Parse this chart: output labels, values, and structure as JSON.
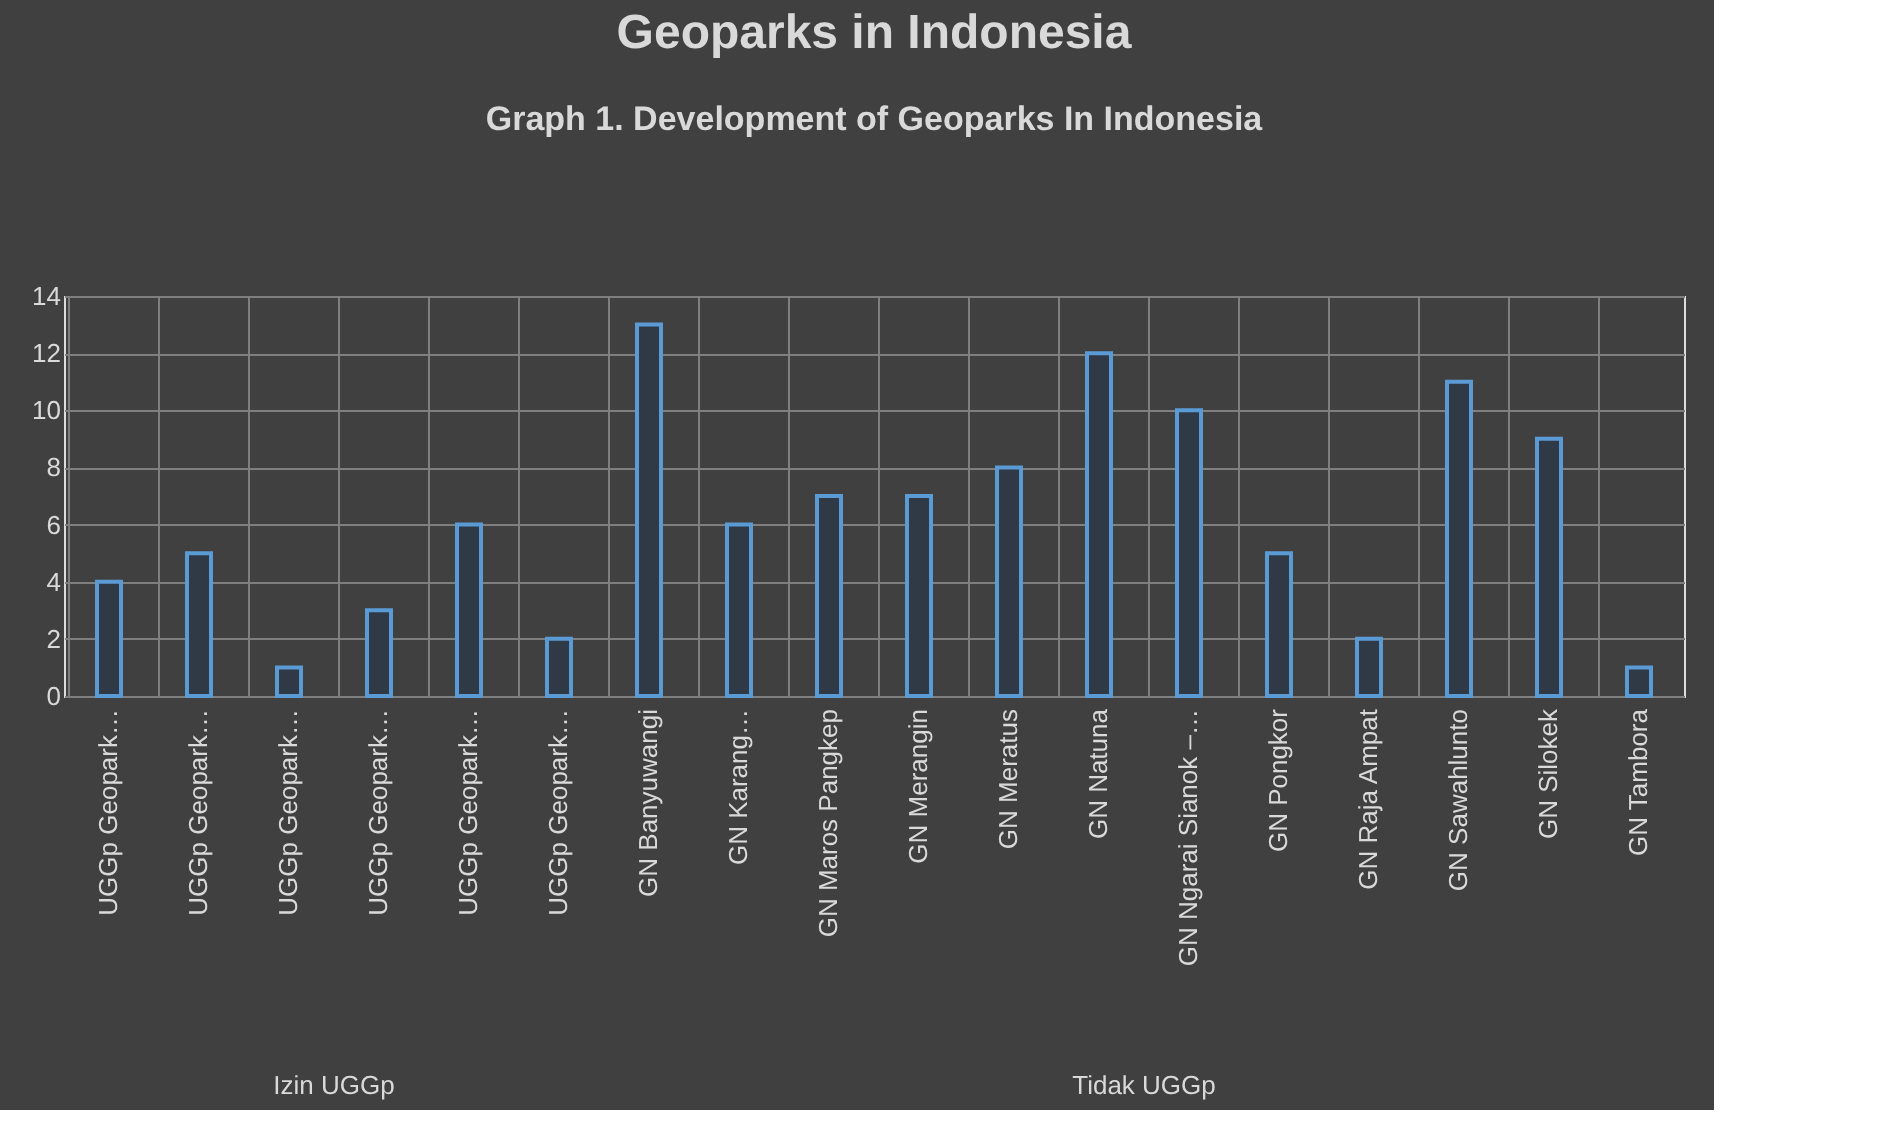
{
  "chart_data": {
    "type": "bar",
    "title": "Geoparks in Indonesia",
    "categories": [
      "UGGp Geopark…",
      "UGGp Geopark…",
      "UGGp Geopark…",
      "UGGp Geopark…",
      "UGGp Geopark…",
      "UGGp Geopark…",
      "GN Banyuwangi",
      "GN Karang…",
      "GN Maros Pangkep",
      "GN Merangin",
      "GN Meratus",
      "GN Natuna",
      "GN Ngarai Sianok –…",
      "GN Pongkor",
      "GN Raja Ampat",
      "GN Sawahlunto",
      "GN Silokek",
      "GN Tambora"
    ],
    "values": [
      4,
      5,
      1,
      3,
      6,
      2,
      13,
      6,
      7,
      7,
      8,
      12,
      10,
      5,
      2,
      11,
      9,
      1
    ],
    "color": "#5b9bd5",
    "ylim": [
      0,
      14
    ],
    "yticks": [
      0,
      2,
      4,
      6,
      8,
      10,
      12,
      14
    ],
    "grid": true,
    "annotations": [
      "Graph 1. Development of Geoparks In Indonesia",
      "Izin UGGp",
      "Tidak UGGp"
    ]
  }
}
